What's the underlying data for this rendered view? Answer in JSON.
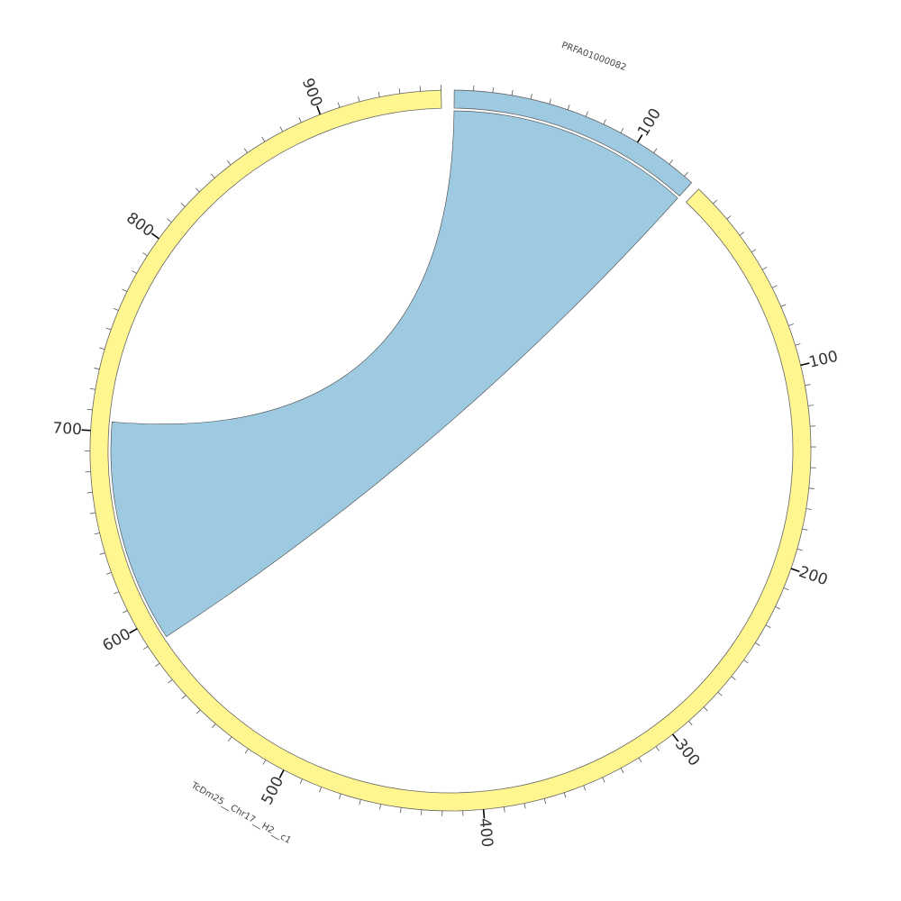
{
  "sequences": [
    {
      "name": "TcDm25__Chr17__H2__c1",
      "length": 960,
      "color": "#fff68f",
      "tick_labels": [
        "100",
        "200",
        "300",
        "400",
        "500",
        "600",
        "700",
        "800",
        "900"
      ]
    },
    {
      "name": "PRFA01000082",
      "length": 135,
      "color": "#9ecae1",
      "tick_labels": [
        "100"
      ]
    }
  ],
  "links": [
    {
      "from": {
        "sequence": "PRFA01000082",
        "start": 0,
        "end": 135
      },
      "to": {
        "sequence": "TcDm25__Chr17__H2__c1",
        "start": 589,
        "end": 705
      },
      "color": "#9ecae1"
    }
  ],
  "colors": {
    "ideogram_stroke": "#666666",
    "tick": "#555555",
    "label": "#333333"
  }
}
